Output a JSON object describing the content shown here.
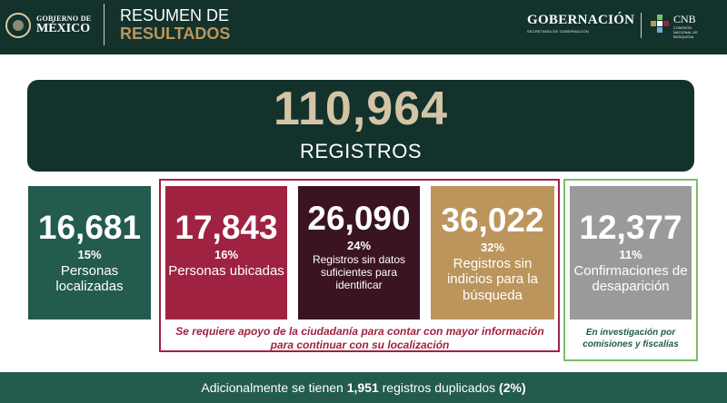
{
  "header": {
    "logo_line1": "GOBIERNO DE",
    "logo_line2": "MÉXICO",
    "title_line1": "RESUMEN DE",
    "title_line2": "RESULTADOS",
    "gob_name": "GOBERNACIÓN",
    "gob_sub": "SECRETARÍA DE GOBERNACIÓN",
    "cnb_name": "CNB",
    "cnb_sub": "COMISIÓN NACIONAL DE BÚSQUEDA"
  },
  "total": {
    "value": "110,964",
    "label": "REGISTROS"
  },
  "cards": {
    "localizadas": {
      "value": "16,681",
      "pct": "15%",
      "label": "Personas localizadas",
      "color": "#235b4e"
    },
    "ubicadas": {
      "value": "17,843",
      "pct": "16%",
      "label": "Personas ubicadas",
      "color": "#9f2241"
    },
    "sin_datos": {
      "value": "26,090",
      "pct": "24%",
      "label": "Registros sin datos suficientes para identificar",
      "color": "#3b1423"
    },
    "sin_indicios": {
      "value": "36,022",
      "pct": "32%",
      "label": "Registros sin indicios para la búsqueda",
      "color": "#bc955c"
    },
    "confirmaciones": {
      "value": "12,377",
      "pct": "11%",
      "label": "Confirmaciones de desaparición",
      "color": "#9a9a9a"
    }
  },
  "notes": {
    "apoyo": "Se requiere apoyo de la ciudadanía para contar con mayor información para continuar con su localización",
    "investigacion": "En investigación por comisiones y fiscalías"
  },
  "footer": {
    "prefix": "Adicionalmente se tienen",
    "duplicados": "1,951",
    "middle": "registros duplicados",
    "pct": "(2%)"
  }
}
